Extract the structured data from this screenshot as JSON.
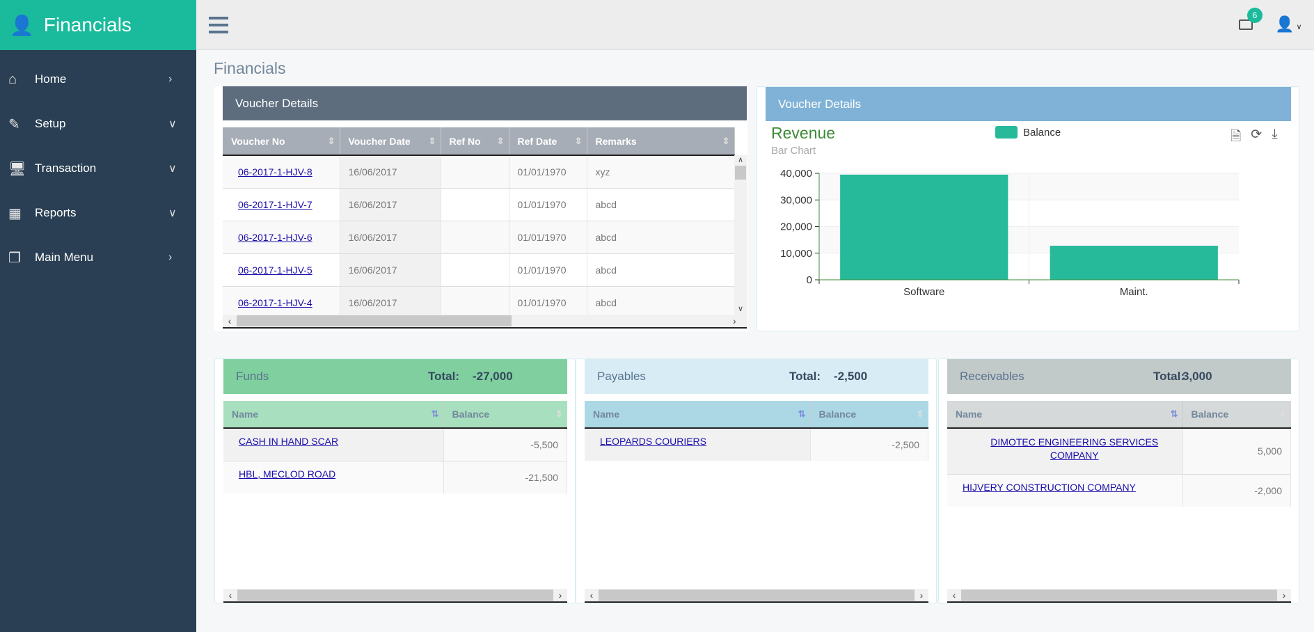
{
  "brand": {
    "title": "Financials",
    "icon": "user-icon"
  },
  "sidebar": {
    "items": [
      {
        "label": "Home",
        "icon": "home-icon",
        "chevron": "chevron-right"
      },
      {
        "label": "Setup",
        "icon": "edit-icon",
        "chevron": "chevron-down"
      },
      {
        "label": "Transaction",
        "icon": "desktop-icon",
        "chevron": "chevron-down"
      },
      {
        "label": "Reports",
        "icon": "table-icon",
        "chevron": "chevron-down"
      },
      {
        "label": "Main Menu",
        "icon": "clone-icon",
        "chevron": "chevron-right"
      }
    ]
  },
  "topbar": {
    "mail_count": "6"
  },
  "page_title": "Financials",
  "voucher": {
    "title": "Voucher Details",
    "columns": [
      "Voucher No",
      "Voucher Date",
      "Ref No",
      "Ref Date",
      "Remarks"
    ],
    "rows": [
      [
        "06-2017-1-HJV-8",
        "16/06/2017",
        "",
        "01/01/1970",
        "xyz"
      ],
      [
        "06-2017-1-HJV-7",
        "16/06/2017",
        "",
        "01/01/1970",
        "abcd"
      ],
      [
        "06-2017-1-HJV-6",
        "16/06/2017",
        "",
        "01/01/1970",
        "abcd"
      ],
      [
        "06-2017-1-HJV-5",
        "16/06/2017",
        "",
        "01/01/1970",
        "abcd"
      ],
      [
        "06-2017-1-HJV-4",
        "16/06/2017",
        "",
        "01/01/1970",
        "abcd"
      ]
    ]
  },
  "chart_panel": {
    "title": "Voucher Details"
  },
  "chart_data": {
    "type": "bar",
    "title": "Revenue",
    "subtitle": "Bar Chart",
    "categories": [
      "Software",
      "Maint."
    ],
    "series": [
      {
        "name": "Balance",
        "values": [
          39500,
          12800
        ],
        "color": "#26b99a"
      }
    ],
    "ylim": [
      0,
      40000
    ],
    "yticks": [
      "0",
      "10,000",
      "20,000",
      "30,000",
      "40,000"
    ],
    "grid": true,
    "legend": "top-center"
  },
  "funds": {
    "title": "Funds",
    "total_label": "Total:",
    "total": "-27,000",
    "columns": [
      "Name",
      "Balance"
    ],
    "rows": [
      [
        "CASH IN HAND SCAR",
        "-5,500"
      ],
      [
        "HBL, MECLOD ROAD",
        "-21,500"
      ]
    ]
  },
  "payables": {
    "title": "Payables",
    "total_label": "Total:",
    "total": "-2,500",
    "columns": [
      "Name",
      "Balance"
    ],
    "rows": [
      [
        "LEOPARDS COURIERS",
        "-2,500"
      ]
    ]
  },
  "receivables": {
    "title": "Receivables",
    "total_label": "Total:",
    "total": "3,000",
    "columns": [
      "Name",
      "Balance"
    ],
    "rows": [
      [
        "DIMOTEC ENGINEERING SERVICES COMPANY",
        "5,000"
      ],
      [
        "HIJVERY CONSTRUCTION COMPANY",
        "-2,000"
      ]
    ]
  }
}
